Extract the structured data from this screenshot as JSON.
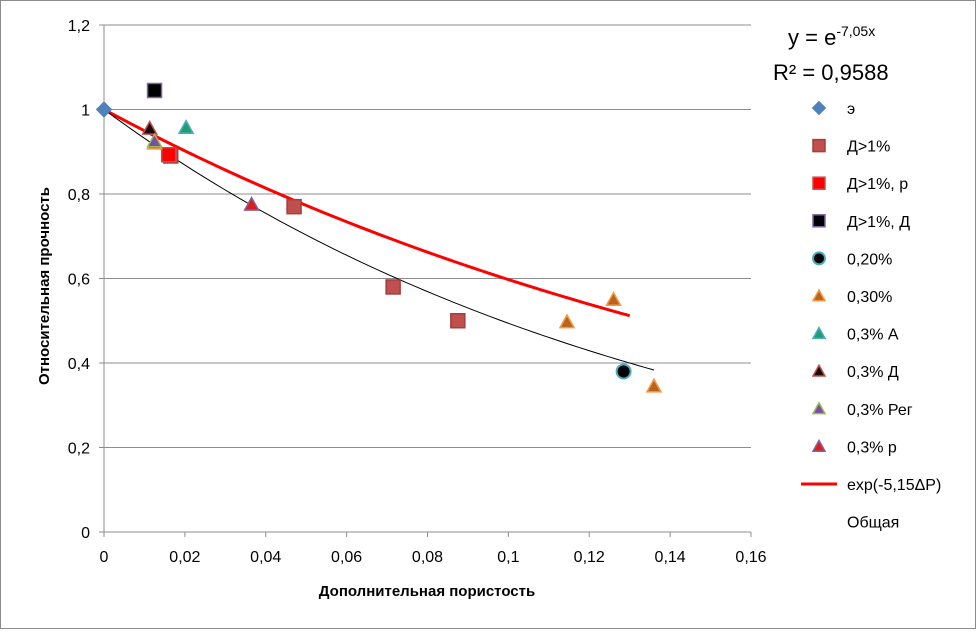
{
  "chart_data": {
    "type": "scatter",
    "xlabel": "Дополнительная пористость",
    "ylabel": "Относительная прочность",
    "xlim": [
      0,
      0.16
    ],
    "ylim": [
      0,
      1.2
    ],
    "x_ticks": [
      0,
      0.02,
      0.04,
      0.06,
      0.08,
      0.1,
      0.12,
      0.14,
      0.16
    ],
    "x_tick_labels": [
      "0",
      "0,02",
      "0,04",
      "0,06",
      "0,08",
      "0,1",
      "0,12",
      "0,14",
      "0,16"
    ],
    "y_ticks": [
      0,
      0.2,
      0.4,
      0.6,
      0.8,
      1.0,
      1.2
    ],
    "y_tick_labels": [
      "0",
      "0,2",
      "0,4",
      "0,6",
      "0,8",
      "1",
      "1,2"
    ],
    "grid": "horizontal",
    "legend_position": "right",
    "trendline_equation": {
      "base": "y = e",
      "exponent": "-7,05x"
    },
    "r_squared": "R² = 0,9588",
    "series": [
      {
        "name": "э",
        "marker": "diamond",
        "color": "#4f81bd",
        "stroke": "#4f81bd",
        "points": [
          [
            0,
            1.0
          ]
        ]
      },
      {
        "name": "Д>1%",
        "marker": "square",
        "color": "#c0504d",
        "stroke": "#a33f3c",
        "points": [
          [
            0.0165,
            0.89
          ],
          [
            0.047,
            0.77
          ],
          [
            0.0715,
            0.58
          ],
          [
            0.0875,
            0.5
          ]
        ]
      },
      {
        "name": "Д>1%, р",
        "marker": "square",
        "color": "#ff0000",
        "stroke": "#c0504d",
        "points": [
          [
            0.016,
            0.893
          ]
        ]
      },
      {
        "name": "Д>1%, Д",
        "marker": "square",
        "color": "#000000",
        "stroke": "#8064a2",
        "points": [
          [
            0.0125,
            1.045
          ]
        ]
      },
      {
        "name": "0,20%",
        "marker": "circle",
        "color": "#000000",
        "stroke": "#4bacc6",
        "points": [
          [
            0.1285,
            0.38
          ]
        ]
      },
      {
        "name": "0,30%",
        "marker": "triangle",
        "color": "#b8651b",
        "stroke": "#f79646",
        "points": [
          [
            0.0125,
            0.92
          ],
          [
            0.1145,
            0.497
          ],
          [
            0.126,
            0.55
          ],
          [
            0.136,
            0.345
          ]
        ]
      },
      {
        "name": "0,3% А",
        "marker": "triangle",
        "color": "#1f9e6e",
        "stroke": "#4bacc6",
        "points": [
          [
            0.0203,
            0.957
          ]
        ]
      },
      {
        "name": "0,3% Д",
        "marker": "triangle",
        "color": "#1a0a0a",
        "stroke": "#c0504d",
        "points": [
          [
            0.0113,
            0.955
          ]
        ]
      },
      {
        "name": "0,3% Рег",
        "marker": "triangle",
        "color": "#7b4fa0",
        "stroke": "#9bbb59",
        "points": [
          [
            0.0125,
            0.925
          ]
        ]
      },
      {
        "name": "0,3% р",
        "marker": "triangle",
        "color": "#e31a1c",
        "stroke": "#8064a2",
        "points": [
          [
            0.0365,
            0.775
          ]
        ]
      }
    ],
    "lines": [
      {
        "name": "exp(-5,15ΔP)",
        "color": "#ff0000",
        "width": 3,
        "k": -5.15,
        "x_range": [
          0,
          0.13
        ],
        "in_legend": true
      },
      {
        "name": "Общая",
        "color": "#000000",
        "width": 1,
        "k": -7.05,
        "x_range": [
          0,
          0.136
        ],
        "in_legend": true
      }
    ]
  }
}
